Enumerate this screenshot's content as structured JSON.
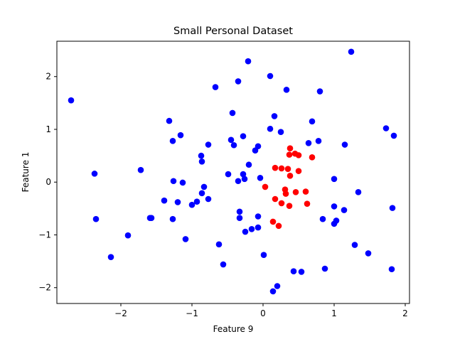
{
  "chart_data": {
    "type": "scatter",
    "title": "Small Personal Dataset",
    "xlabel": "Feature 9",
    "ylabel": "Feature 1",
    "xlim": [
      -2.9,
      2.06
    ],
    "ylim": [
      -2.3,
      2.67
    ],
    "xticks": [
      -2,
      -1,
      0,
      1,
      2
    ],
    "yticks": [
      -2,
      -1,
      0,
      1,
      2
    ],
    "grid": false,
    "legend": "none",
    "colors": {
      "outer": "#0000ff",
      "inner": "#ff0000"
    },
    "series": [
      {
        "color_key": "outer",
        "points": [
          [
            -2.7,
            1.55
          ],
          [
            -2.37,
            0.16
          ],
          [
            -2.35,
            -0.7
          ],
          [
            -2.14,
            -1.42
          ],
          [
            -1.9,
            -1.01
          ],
          [
            -1.72,
            0.23
          ],
          [
            -1.59,
            -0.68
          ],
          [
            -1.57,
            -0.68
          ],
          [
            -1.39,
            -0.35
          ],
          [
            -1.32,
            1.16
          ],
          [
            -1.27,
            0.78
          ],
          [
            -1.26,
            0.02
          ],
          [
            -1.27,
            -0.7
          ],
          [
            -1.2,
            -0.38
          ],
          [
            -1.16,
            0.89
          ],
          [
            -1.13,
            -0.01
          ],
          [
            -1.09,
            -1.08
          ],
          [
            -1.0,
            -0.43
          ],
          [
            -0.93,
            -0.37
          ],
          [
            -0.87,
            0.5
          ],
          [
            -0.86,
            0.39
          ],
          [
            -0.86,
            -0.21
          ],
          [
            -0.83,
            -0.09
          ],
          [
            -0.77,
            0.71
          ],
          [
            -0.77,
            -0.32
          ],
          [
            -0.67,
            1.8
          ],
          [
            -0.62,
            -1.18
          ],
          [
            -0.56,
            -1.56
          ],
          [
            -0.49,
            0.15
          ],
          [
            -0.45,
            0.8
          ],
          [
            -0.43,
            1.31
          ],
          [
            -0.41,
            0.7
          ],
          [
            -0.35,
            1.91
          ],
          [
            -0.35,
            0.02
          ],
          [
            -0.33,
            -0.56
          ],
          [
            -0.33,
            -0.68
          ],
          [
            -0.28,
            0.87
          ],
          [
            -0.28,
            0.15
          ],
          [
            -0.26,
            0.06
          ],
          [
            -0.25,
            -0.94
          ],
          [
            -0.21,
            2.29
          ],
          [
            -0.2,
            0.33
          ],
          [
            -0.16,
            -0.89
          ],
          [
            -0.11,
            0.6
          ],
          [
            -0.07,
            0.68
          ],
          [
            -0.07,
            -0.65
          ],
          [
            -0.07,
            -0.86
          ],
          [
            -0.04,
            0.08
          ],
          [
            0.01,
            -1.38
          ],
          [
            0.1,
            2.01
          ],
          [
            0.1,
            1.01
          ],
          [
            0.14,
            -2.07
          ],
          [
            0.16,
            1.25
          ],
          [
            0.2,
            -1.97
          ],
          [
            0.25,
            0.95
          ],
          [
            0.33,
            1.75
          ],
          [
            0.43,
            -1.69
          ],
          [
            0.54,
            -1.7
          ],
          [
            0.64,
            0.74
          ],
          [
            0.69,
            1.15
          ],
          [
            0.78,
            0.78
          ],
          [
            0.8,
            1.72
          ],
          [
            0.84,
            -0.7
          ],
          [
            0.87,
            -1.64
          ],
          [
            1.0,
            0.06
          ],
          [
            1.0,
            -0.46
          ],
          [
            1.0,
            -0.79
          ],
          [
            1.03,
            -0.73
          ],
          [
            1.14,
            -0.53
          ],
          [
            1.15,
            0.71
          ],
          [
            1.24,
            2.47
          ],
          [
            1.29,
            -1.19
          ],
          [
            1.34,
            -0.19
          ],
          [
            1.48,
            -1.35
          ],
          [
            1.73,
            1.02
          ],
          [
            1.81,
            -1.65
          ],
          [
            1.82,
            -0.49
          ],
          [
            1.84,
            0.88
          ]
        ]
      },
      {
        "color_key": "inner",
        "points": [
          [
            0.03,
            -0.09
          ],
          [
            0.14,
            -0.75
          ],
          [
            0.17,
            0.27
          ],
          [
            0.17,
            -0.32
          ],
          [
            0.22,
            -0.83
          ],
          [
            0.26,
            0.26
          ],
          [
            0.26,
            -0.4
          ],
          [
            0.31,
            -0.14
          ],
          [
            0.32,
            -0.22
          ],
          [
            0.35,
            0.25
          ],
          [
            0.37,
            0.52
          ],
          [
            0.37,
            -0.45
          ],
          [
            0.38,
            0.64
          ],
          [
            0.38,
            0.12
          ],
          [
            0.45,
            0.54
          ],
          [
            0.46,
            -0.19
          ],
          [
            0.5,
            0.51
          ],
          [
            0.5,
            0.21
          ],
          [
            0.6,
            -0.18
          ],
          [
            0.62,
            -0.41
          ],
          [
            0.69,
            0.47
          ]
        ]
      }
    ]
  }
}
